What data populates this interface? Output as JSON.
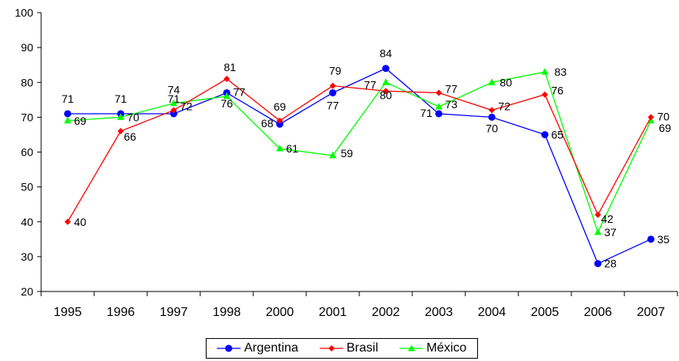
{
  "chart_data": {
    "type": "line",
    "title": "",
    "xlabel": "",
    "ylabel": "",
    "categories": [
      "1995",
      "1996",
      "1997",
      "1998",
      "2000",
      "2001",
      "2002",
      "2003",
      "2004",
      "2005",
      "2006",
      "2007"
    ],
    "ylim": [
      20,
      100
    ],
    "yticks": [
      20,
      30,
      40,
      50,
      60,
      70,
      80,
      90,
      100
    ],
    "grid": false,
    "legend_position": "bottom",
    "series": [
      {
        "name": "Argentina",
        "color": "#0000FF",
        "marker": "circle",
        "values": [
          71,
          71,
          71,
          77,
          68,
          77,
          84,
          71,
          70,
          65,
          28,
          35
        ],
        "labels": [
          "71",
          "71",
          "71",
          "77",
          "68",
          "77",
          "84",
          "71",
          "70",
          "65",
          "28",
          "35"
        ]
      },
      {
        "name": "Brasil",
        "color": "#FF0000",
        "marker": "diamond",
        "values": [
          40,
          66,
          72,
          81,
          69,
          79,
          77.5,
          77,
          72,
          76.5,
          42,
          70
        ],
        "labels": [
          "40",
          "66",
          "72",
          "81",
          "69",
          "79",
          "77",
          "77",
          "72",
          "76",
          "42",
          "70"
        ]
      },
      {
        "name": "México",
        "color": "#00FF00",
        "marker": "triangle",
        "values": [
          69,
          70,
          74,
          76,
          61,
          59,
          80,
          73,
          80,
          83,
          37,
          69
        ],
        "labels": [
          "69",
          "70",
          "74",
          "76",
          "61",
          "59",
          "80",
          "73",
          "80",
          "83",
          "37",
          "69"
        ]
      }
    ]
  }
}
